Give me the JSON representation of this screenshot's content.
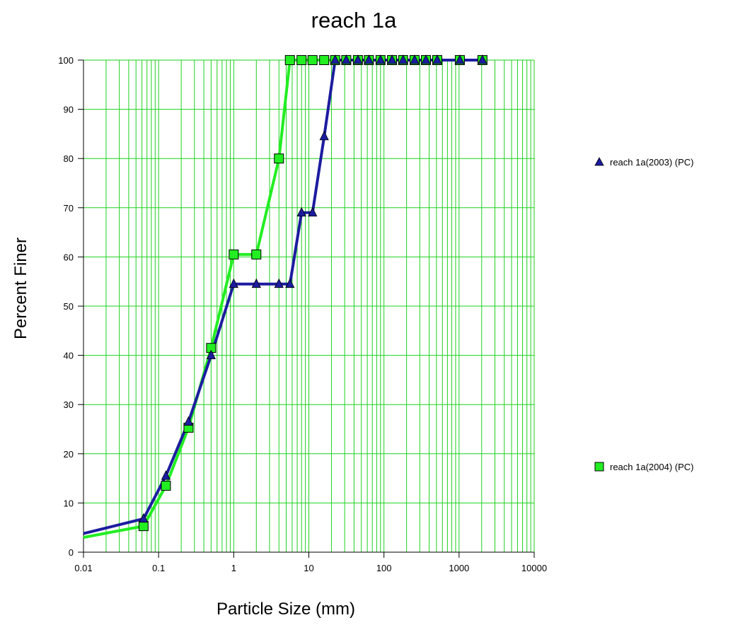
{
  "chart_data": {
    "type": "line",
    "title": "reach 1a",
    "xlabel": "Particle Size (mm)",
    "ylabel": "Percent Finer",
    "xscale": "log",
    "xlim": [
      0.01,
      10000
    ],
    "ylim": [
      0,
      100
    ],
    "xticks": [
      "0.01",
      "0.1",
      "1",
      "10",
      "100",
      "1000",
      "10000"
    ],
    "yticks": [
      "0",
      "10",
      "20",
      "30",
      "40",
      "50",
      "60",
      "70",
      "80",
      "90",
      "100"
    ],
    "grid": true,
    "legend_position": "right",
    "series": [
      {
        "name": "reach 1a(2003) (PC)",
        "color": "#1c1ca0",
        "marker": "triangle",
        "line_start": [
          0.01,
          3.8
        ],
        "x": [
          0.063,
          0.125,
          0.25,
          0.5,
          1,
          2,
          4,
          5.6,
          8,
          11.2,
          16,
          22.4,
          31.5,
          45,
          63,
          90,
          128,
          180,
          256,
          362,
          512,
          1024,
          2048
        ],
        "y": [
          6.8,
          15.5,
          26.5,
          40,
          54.5,
          54.5,
          54.5,
          54.5,
          69,
          69,
          84.5,
          100,
          100,
          100,
          100,
          100,
          100,
          100,
          100,
          100,
          100,
          100,
          100
        ]
      },
      {
        "name": "reach 1a(2004) (PC)",
        "color": "#22ee22",
        "marker": "square",
        "line_start": [
          0.01,
          3
        ],
        "x": [
          0.063,
          0.125,
          0.25,
          0.5,
          1,
          2,
          4,
          5.6,
          8,
          11.2,
          16,
          22.4,
          31.5,
          45,
          63,
          90,
          128,
          180,
          256,
          362,
          512,
          1024,
          2048
        ],
        "y": [
          5.3,
          13.5,
          25.3,
          41.5,
          60.5,
          60.5,
          80,
          100,
          100,
          100,
          100,
          100,
          100,
          100,
          100,
          100,
          100,
          100,
          100,
          100,
          100,
          100,
          100
        ]
      }
    ]
  }
}
